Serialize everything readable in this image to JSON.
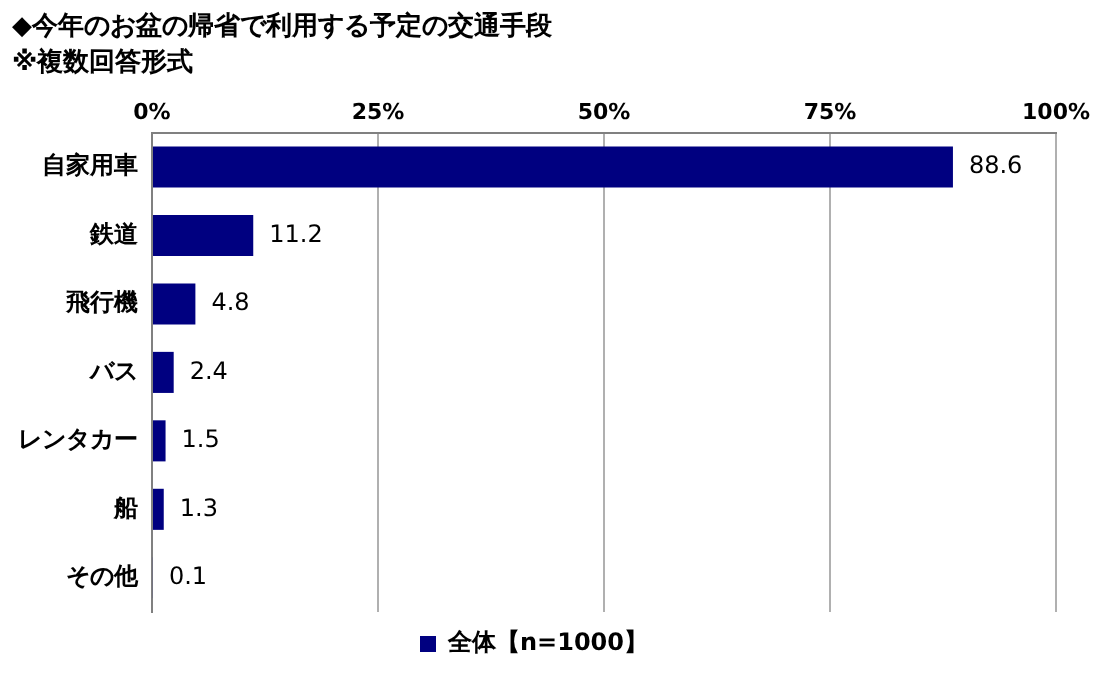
{
  "chart_data": {
    "type": "bar",
    "orientation": "horizontal",
    "title": "◆今年のお盆の帰省で利用する予定の交通手段",
    "subtitle": "※複数回答形式",
    "categories": [
      "自家用車",
      "鉄道",
      "飛行機",
      "バス",
      "レンタカー",
      "船",
      "その他"
    ],
    "series": [
      {
        "name": "全体【n=1000】",
        "color": "#000080",
        "values": [
          88.6,
          11.2,
          4.8,
          2.4,
          1.5,
          1.3,
          0.1
        ]
      }
    ],
    "xlim": [
      0,
      100
    ],
    "xticks": [
      {
        "value": 0,
        "label": "0%"
      },
      {
        "value": 25,
        "label": "25%"
      },
      {
        "value": 50,
        "label": "50%"
      },
      {
        "value": 75,
        "label": "75%"
      },
      {
        "value": 100,
        "label": "100%"
      }
    ],
    "grid": "x",
    "legend": "bottom",
    "data_labels": true
  }
}
